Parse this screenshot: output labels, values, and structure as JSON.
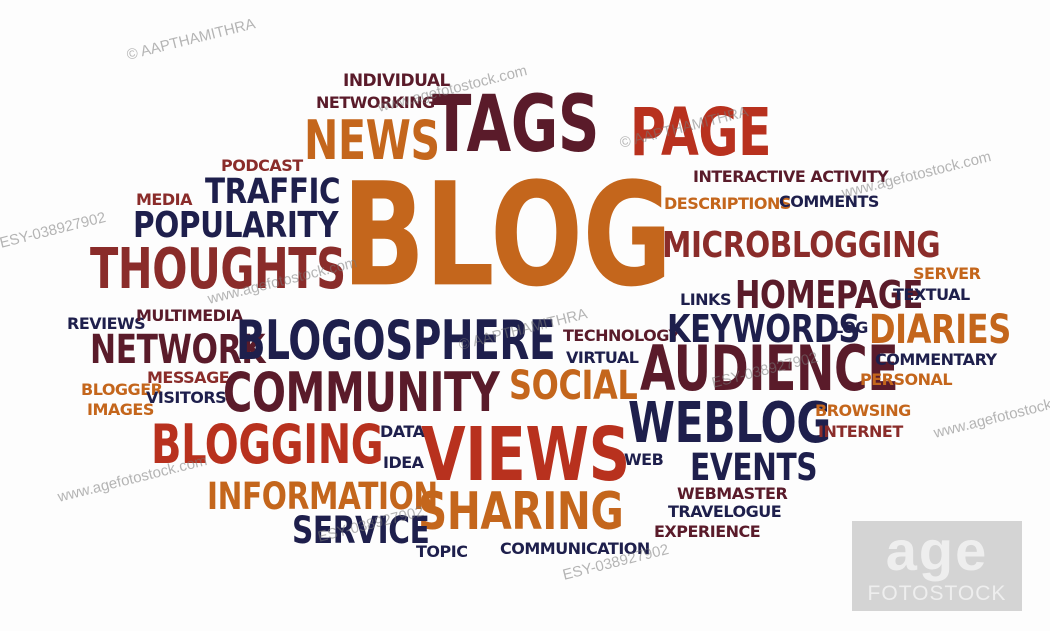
{
  "words": [
    {
      "text": "BLOG",
      "color": "#c4661c"
    },
    {
      "text": "TAGS",
      "color": "#5a1b2a"
    },
    {
      "text": "PAGE",
      "color": "#b8311e"
    },
    {
      "text": "NEWS",
      "color": "#c4661c"
    },
    {
      "text": "INDIVIDUAL",
      "color": "#5a1b2a"
    },
    {
      "text": "NETWORKING",
      "color": "#5a1b2a"
    },
    {
      "text": "PODCAST",
      "color": "#8a2c2a"
    },
    {
      "text": "TRAFFIC",
      "color": "#1e1f4c"
    },
    {
      "text": "MEDIA",
      "color": "#8a2c2a"
    },
    {
      "text": "POPULARITY",
      "color": "#1e1f4c"
    },
    {
      "text": "THOUGHTS",
      "color": "#8a2c2a"
    },
    {
      "text": "REVIEWS",
      "color": "#1e1f4c"
    },
    {
      "text": "MULTIMEDIA",
      "color": "#5a1b2a"
    },
    {
      "text": "NETWORK",
      "color": "#5a1b2a"
    },
    {
      "text": "BLOGOSPHERE",
      "color": "#1e1f4c"
    },
    {
      "text": "BLOGGER",
      "color": "#c4661c"
    },
    {
      "text": "MESSAGE",
      "color": "#8a2c2a"
    },
    {
      "text": "IMAGES",
      "color": "#c4661c"
    },
    {
      "text": "VISITORS",
      "color": "#1e1f4c"
    },
    {
      "text": "COMMUNITY",
      "color": "#5a1b2a"
    },
    {
      "text": "SOCIAL",
      "color": "#c4661c"
    },
    {
      "text": "BLOGGING",
      "color": "#b8311e"
    },
    {
      "text": "DATA",
      "color": "#1e1f4c"
    },
    {
      "text": "VIEWS",
      "color": "#b8311e"
    },
    {
      "text": "IDEA",
      "color": "#1e1f4c"
    },
    {
      "text": "INFORMATION",
      "color": "#c4661c"
    },
    {
      "text": "SHARING",
      "color": "#c4661c"
    },
    {
      "text": "SERVICE",
      "color": "#1e1f4c"
    },
    {
      "text": "TOPIC",
      "color": "#1e1f4c"
    },
    {
      "text": "COMMUNICATION",
      "color": "#1e1f4c"
    },
    {
      "text": "INTERACTIVE ACTIVITY",
      "color": "#5a1b2a"
    },
    {
      "text": "DESCRIPTIONS",
      "color": "#c4661c"
    },
    {
      "text": "COMMENTS",
      "color": "#1e1f4c"
    },
    {
      "text": "MICROBLOGGING",
      "color": "#8a2c2a"
    },
    {
      "text": "SERVER",
      "color": "#c4661c"
    },
    {
      "text": "LINKS",
      "color": "#1e1f4c"
    },
    {
      "text": "HOMEPAGE",
      "color": "#5a1b2a"
    },
    {
      "text": "TEXTUAL",
      "color": "#1e1f4c"
    },
    {
      "text": "TECHNOLOGY",
      "color": "#5a1b2a"
    },
    {
      "text": "KEYWORDS",
      "color": "#1e1f4c"
    },
    {
      "text": "LOG",
      "color": "#1e1f4c"
    },
    {
      "text": "DIARIES",
      "color": "#c4661c"
    },
    {
      "text": "VIRTUAL",
      "color": "#1e1f4c"
    },
    {
      "text": "AUDIENCE",
      "color": "#5a1b2a"
    },
    {
      "text": "COMMENTARY",
      "color": "#1e1f4c"
    },
    {
      "text": "PERSONAL",
      "color": "#c4661c"
    },
    {
      "text": "WEBLOG",
      "color": "#1e1f4c"
    },
    {
      "text": "BROWSING",
      "color": "#c4661c"
    },
    {
      "text": "INTERNET",
      "color": "#8a2c2a"
    },
    {
      "text": "WEB",
      "color": "#1e1f4c"
    },
    {
      "text": "EVENTS",
      "color": "#1e1f4c"
    },
    {
      "text": "WEBMASTER",
      "color": "#5a1b2a"
    },
    {
      "text": "TRAVELOGUE",
      "color": "#1e1f4c"
    },
    {
      "text": "EXPERIENCE",
      "color": "#5a1b2a"
    }
  ],
  "watermarks": [
    "© AAPTHAMITHRA",
    "www.agefotostock.com",
    "© AAPTHAMITHRA",
    "www.agefotostock.com",
    "ESY-038927902",
    "www.agefotostock.com",
    "© AAPTHAMITHRA",
    "ESY-038927902",
    "www.agefotostock.com",
    "www.agefotostock.com",
    "ESY-038927902",
    "ESY-038927902"
  ],
  "logo": {
    "big": "age",
    "small": "FOTOSTOCK"
  }
}
